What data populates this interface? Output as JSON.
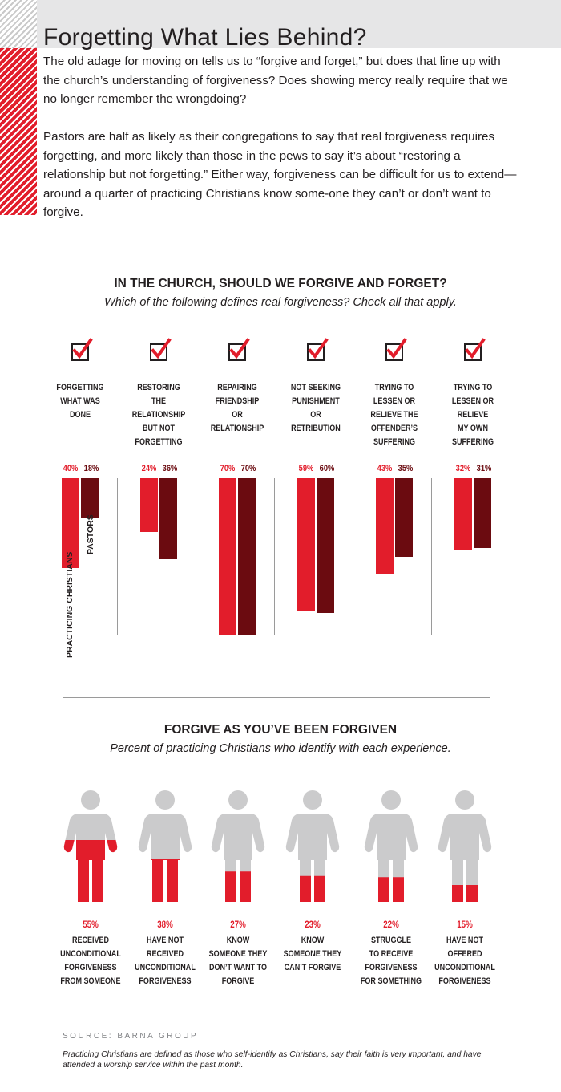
{
  "title": "Forgetting What Lies Behind?",
  "intro": {
    "p1": "The old adage for moving on tells us to “forgive and forget,” but does that line up with the church’s understanding of forgiveness? Does showing mercy really require that we no longer remember the wrongdoing?",
    "p2": "Pastors are half as likely as their congregations to say that real forgiveness requires forgetting, and more likely than those in the pews to say it’s about “restoring a relationship but not forgetting.” Either way, forgiveness can be difficult for us to extend—around a quarter of practicing Christians know some-one they can’t or don’t want to forgive."
  },
  "colors": {
    "practicing": "#e21d2b",
    "pastors": "#6b0b10",
    "figure": "#cbcbcc",
    "checkmark": "#e21d2b"
  },
  "icons": {
    "checkbox": "checkbox-icon",
    "person": "person-icon"
  },
  "chart_data": [
    {
      "type": "bar",
      "title": "IN THE CHURCH, SHOULD WE FORGIVE AND FORGET?",
      "subtitle": "Which of the following defines real forgiveness? Check all that apply.",
      "categories": [
        "FORGETTING WHAT WAS DONE",
        "RESTORING THE RELATIONSHIP BUT NOT FORGETTING",
        "REPAIRING FRIENDSHIP OR RELATIONSHIP",
        "NOT SEEKING PUNISHMENT OR RETRIBUTION",
        "TRYING TO LESSEN OR RELIEVE THE OFFENDER’S SUFFERING",
        "TRYING TO LESSEN OR RELIEVE MY OWN SUFFERING"
      ],
      "category_lines": [
        [
          "FORGETTING",
          "WHAT WAS",
          "DONE"
        ],
        [
          "RESTORING THE",
          "RELATIONSHIP",
          "BUT NOT",
          "FORGETTING"
        ],
        [
          "REPAIRING",
          "FRIENDSHIP",
          "OR",
          "RELATIONSHIP"
        ],
        [
          "NOT SEEKING",
          "PUNISHMENT",
          "OR",
          "RETRIBUTION"
        ],
        [
          "TRYING TO",
          "LESSEN OR",
          "RELIEVE THE",
          "OFFENDER’S",
          "SUFFERING"
        ],
        [
          "TRYING TO",
          "LESSEN OR",
          "RELIEVE",
          "MY OWN",
          "SUFFERING"
        ]
      ],
      "series": [
        {
          "name": "PRACTICING CHRISTIANS",
          "values": [
            40,
            24,
            70,
            59,
            43,
            32
          ]
        },
        {
          "name": "PASTORS",
          "values": [
            18,
            36,
            70,
            60,
            35,
            31
          ]
        }
      ],
      "value_labels": [
        [
          "40%",
          "24%",
          "70%",
          "59%",
          "43%",
          "32%"
        ],
        [
          "18%",
          "36%",
          "70%",
          "60%",
          "35%",
          "31%"
        ]
      ],
      "ylim": [
        0,
        70
      ],
      "orientation": "vertical, bars hang downward"
    },
    {
      "type": "pictograph",
      "title": "FORGIVE AS YOU’VE BEEN FORGIVEN",
      "subtitle": "Percent of practicing Christians who identify with each experience.",
      "categories": [
        "RECEIVED UNCONDITIONAL FORGIVENESS FROM SOMEONE",
        "HAVE NOT RECEIVED UNCONDITIONAL FORGIVENESS",
        "KNOW SOMEONE THEY DON’T WANT TO FORGIVE",
        "KNOW SOMEONE THEY CAN’T FORGIVE",
        "STRUGGLE TO RECEIVE FORGIVENESS FOR SOMETHING",
        "HAVE NOT OFFERED UNCONDITIONAL FORGIVENESS"
      ],
      "category_lines": [
        [
          "RECEIVED",
          "UNCONDITIONAL",
          "FORGIVENESS",
          "FROM SOMEONE"
        ],
        [
          "HAVE NOT",
          "RECEIVED",
          "UNCONDITIONAL",
          "FORGIVENESS"
        ],
        [
          "KNOW",
          "SOMEONE THEY",
          "DON’T WANT TO",
          "FORGIVE"
        ],
        [
          "KNOW",
          "SOMEONE THEY",
          "CAN’T FORGIVE"
        ],
        [
          "STRUGGLE",
          "TO RECEIVE",
          "FORGIVENESS",
          "FOR SOMETHING"
        ],
        [
          "HAVE NOT",
          "OFFERED",
          "UNCONDITIONAL",
          "FORGIVENESS"
        ]
      ],
      "values": [
        55,
        38,
        27,
        23,
        22,
        15
      ],
      "value_labels": [
        "55%",
        "38%",
        "27%",
        "23%",
        "22%",
        "15%"
      ]
    }
  ],
  "source": "SOURCE: BARNA GROUP",
  "footnote": "Practicing Christians are defined as those who self-identify as Christians, say their faith is very important, and have attended a worship service within the past month."
}
